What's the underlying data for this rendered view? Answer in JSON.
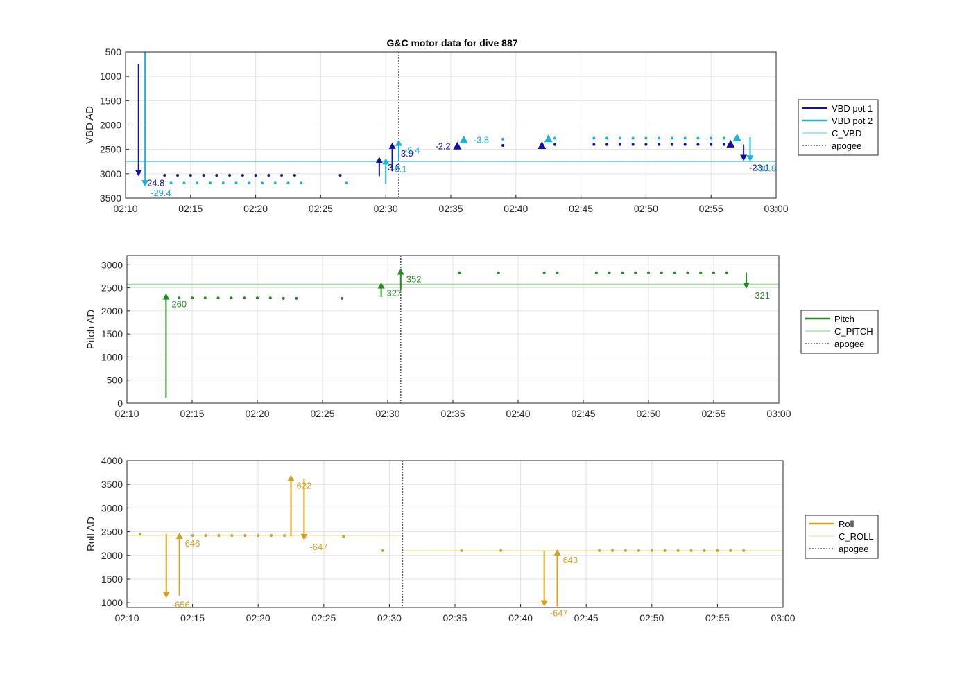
{
  "figure": {
    "title": "G&C motor data for dive 887"
  },
  "chart_data": [
    {
      "type": "line",
      "id": "vbd",
      "ylabel": "VBD AD",
      "xlabel": "",
      "xlim": [
        "02:10",
        "03:00"
      ],
      "ylim": [
        500,
        3500
      ],
      "y_reversed": true,
      "yticks": [
        500,
        1000,
        1500,
        2000,
        2500,
        3000,
        3500
      ],
      "xticks": [
        "02:10",
        "02:15",
        "02:20",
        "02:25",
        "02:30",
        "02:35",
        "02:40",
        "02:45",
        "02:50",
        "02:55",
        "03:00"
      ],
      "grid": true,
      "legend_position": "outside-right",
      "legend": [
        {
          "label": "VBD pot 1",
          "color": "#1010a8",
          "style": "thick"
        },
        {
          "label": "VBD pot 2",
          "color": "#1ab0e0",
          "style": "thick"
        },
        {
          "label": "C_VBD",
          "color": "#3ad6e4",
          "style": "thin"
        },
        {
          "label": "apogee",
          "color": "#555555",
          "style": "dotted"
        }
      ],
      "reference_lines": [
        {
          "name": "C_VBD",
          "y": 2750,
          "color": "#3ad6e4"
        }
      ],
      "apogee": "02:31",
      "series": [
        {
          "name": "VBD pot 1",
          "color": "#1010a8",
          "x": [
            "02:13",
            "02:14",
            "02:15",
            "02:16",
            "02:17",
            "02:18",
            "02:19",
            "02:20",
            "02:21",
            "02:22",
            "02:23",
            "02:26.5",
            "02:39",
            "02:43",
            "02:46",
            "02:47",
            "02:48",
            "02:49",
            "02:50",
            "02:51",
            "02:52",
            "02:53",
            "02:54",
            "02:55",
            "02:56"
          ],
          "y": [
            3030,
            3030,
            3030,
            3030,
            3030,
            3030,
            3030,
            3030,
            3030,
            3030,
            3030,
            3030,
            2420,
            2400,
            2400,
            2400,
            2400,
            2400,
            2400,
            2400,
            2400,
            2400,
            2400,
            2400,
            2400
          ]
        },
        {
          "name": "VBD pot 2",
          "color": "#1ab0e0",
          "x": [
            "02:13.5",
            "02:14.5",
            "02:15.5",
            "02:16.5",
            "02:17.5",
            "02:18.5",
            "02:19.5",
            "02:20.5",
            "02:21.5",
            "02:22.5",
            "02:23.5",
            "02:27",
            "02:39",
            "02:43",
            "02:46",
            "02:47",
            "02:48",
            "02:49",
            "02:50",
            "02:51",
            "02:52",
            "02:53",
            "02:54",
            "02:55",
            "02:56"
          ],
          "y": [
            3190,
            3190,
            3190,
            3190,
            3190,
            3190,
            3190,
            3190,
            3190,
            3190,
            3190,
            3190,
            2290,
            2270,
            2270,
            2270,
            2270,
            2270,
            2270,
            2270,
            2270,
            2270,
            2270,
            2270,
            2270
          ]
        }
      ],
      "events": [
        {
          "x": "02:11",
          "y_from": 750,
          "y_to": 3050,
          "color": "#1010a8",
          "label": "-24.8"
        },
        {
          "x": "02:11.5",
          "y_from": 500,
          "y_to": 3260,
          "color": "#1ab0e0",
          "label": "-29.4"
        },
        {
          "x": "02:29.5",
          "y_from": 3050,
          "y_to": 2650,
          "color": "#1010a8",
          "label": "-3.8"
        },
        {
          "x": "02:30",
          "y_from": 3200,
          "y_to": 2680,
          "color": "#1ab0e0",
          "label": "-6.1"
        },
        {
          "x": "02:30.5",
          "y_from": 2950,
          "y_to": 2360,
          "color": "#1010a8",
          "label": "-3.9"
        },
        {
          "x": "02:31",
          "y_from": 2720,
          "y_to": 2300,
          "color": "#1ab0e0",
          "label": "-5.4"
        },
        {
          "x": "02:57.5",
          "y_from": 2400,
          "y_to": 2740,
          "color": "#1010a8",
          "label": "-23.1"
        },
        {
          "x": "02:58",
          "y_from": 2250,
          "y_to": 2750,
          "color": "#1ab0e0",
          "label": "-30.8"
        }
      ],
      "markers": [
        {
          "x": "02:35.5",
          "y": 2430,
          "color": "#1010a8",
          "label": "-2.2"
        },
        {
          "x": "02:36",
          "y": 2300,
          "color": "#1ab0e0",
          "label": "-3.8"
        },
        {
          "x": "02:42",
          "y": 2420,
          "color": "#1010a8",
          "label": ""
        },
        {
          "x": "02:42.5",
          "y": 2280,
          "color": "#1ab0e0",
          "label": ""
        },
        {
          "x": "02:56.5",
          "y": 2390,
          "color": "#1010a8",
          "label": ""
        },
        {
          "x": "02:57",
          "y": 2260,
          "color": "#1ab0e0",
          "label": ""
        }
      ]
    },
    {
      "type": "line",
      "id": "pitch",
      "ylabel": "Pitch AD",
      "xlabel": "",
      "xlim": [
        "02:10",
        "03:00"
      ],
      "ylim": [
        0,
        3200
      ],
      "y_reversed": false,
      "yticks": [
        0,
        500,
        1000,
        1500,
        2000,
        2500,
        3000
      ],
      "xticks": [
        "02:10",
        "02:15",
        "02:20",
        "02:25",
        "02:30",
        "02:35",
        "02:40",
        "02:45",
        "02:50",
        "02:55",
        "03:00"
      ],
      "grid": true,
      "legend_position": "outside-right",
      "legend": [
        {
          "label": "Pitch",
          "color": "#228b22",
          "style": "thick"
        },
        {
          "label": "C_PITCH",
          "color": "#66dd66",
          "style": "thin"
        },
        {
          "label": "apogee",
          "color": "#555555",
          "style": "dotted"
        }
      ],
      "reference_lines": [
        {
          "name": "C_PITCH",
          "y": 2580,
          "color": "#66dd66"
        }
      ],
      "apogee": "02:31",
      "series": [
        {
          "name": "Pitch",
          "color": "#228b22",
          "x": [
            "02:14",
            "02:15",
            "02:16",
            "02:17",
            "02:18",
            "02:19",
            "02:20",
            "02:21",
            "02:22",
            "02:23",
            "02:26.5",
            "02:35.5",
            "02:38.5",
            "02:42",
            "02:43",
            "02:46",
            "02:47",
            "02:48",
            "02:49",
            "02:50",
            "02:51",
            "02:52",
            "02:53",
            "02:54",
            "02:55",
            "02:56"
          ],
          "y": [
            2280,
            2280,
            2280,
            2280,
            2280,
            2280,
            2280,
            2280,
            2270,
            2270,
            2270,
            2830,
            2830,
            2830,
            2830,
            2830,
            2830,
            2830,
            2830,
            2830,
            2830,
            2830,
            2830,
            2830,
            2830,
            2830
          ]
        }
      ],
      "events": [
        {
          "x": "02:13",
          "y_from": 120,
          "y_to": 2380,
          "color": "#228b22",
          "label": "260"
        },
        {
          "x": "02:29.5",
          "y_from": 2300,
          "y_to": 2620,
          "color": "#228b22",
          "label": "327"
        },
        {
          "x": "02:31",
          "y_from": 2480,
          "y_to": 2920,
          "color": "#228b22",
          "label": "352"
        },
        {
          "x": "02:57.5",
          "y_from": 2830,
          "y_to": 2480,
          "color": "#228b22",
          "label": "-321"
        }
      ],
      "markers": []
    },
    {
      "type": "line",
      "id": "roll",
      "ylabel": "Roll AD",
      "xlabel": "",
      "xlim": [
        "02:10",
        "03:00"
      ],
      "ylim": [
        900,
        4000
      ],
      "y_reversed": false,
      "yticks": [
        1000,
        1500,
        2000,
        2500,
        3000,
        3500,
        4000
      ],
      "xticks": [
        "02:10",
        "02:15",
        "02:20",
        "02:25",
        "02:30",
        "02:35",
        "02:40",
        "02:45",
        "02:50",
        "02:55",
        "03:00"
      ],
      "grid": true,
      "legend_position": "outside-right",
      "legend": [
        {
          "label": "Roll",
          "color": "#d4a020",
          "style": "thick"
        },
        {
          "label": "C_ROLL",
          "color": "#f2e07a",
          "style": "thin"
        },
        {
          "label": "apogee",
          "color": "#555555",
          "style": "dotted"
        }
      ],
      "reference_lines": [
        {
          "name": "C_ROLL",
          "y": 2420,
          "x_from": "02:10",
          "x_to": "02:31",
          "color": "#f2e07a"
        },
        {
          "name": "C_ROLL",
          "y": 2100,
          "x_from": "02:31",
          "x_to": "03:00",
          "color": "#f2e07a"
        }
      ],
      "apogee": "02:31",
      "series": [
        {
          "name": "Roll",
          "color": "#d4a020",
          "x": [
            "02:11",
            "02:15",
            "02:16",
            "02:17",
            "02:18",
            "02:19",
            "02:20",
            "02:21",
            "02:22",
            "02:26.5",
            "02:29.5",
            "02:35.5",
            "02:38.5",
            "02:46",
            "02:47",
            "02:48",
            "02:49",
            "02:50",
            "02:51",
            "02:52",
            "02:53",
            "02:54",
            "02:55",
            "02:56",
            "02:57"
          ],
          "y": [
            2450,
            2420,
            2420,
            2420,
            2420,
            2420,
            2420,
            2420,
            2420,
            2400,
            2100,
            2100,
            2100,
            2100,
            2100,
            2100,
            2100,
            2100,
            2100,
            2100,
            2100,
            2100,
            2100,
            2100,
            2100
          ]
        }
      ],
      "events": [
        {
          "x": "02:13",
          "y_from": 2450,
          "y_to": 1100,
          "color": "#d4a020",
          "label": "-656"
        },
        {
          "x": "02:14",
          "y_from": 1150,
          "y_to": 2480,
          "color": "#d4a020",
          "label": "646"
        },
        {
          "x": "02:22.5",
          "y_from": 2400,
          "y_to": 3700,
          "color": "#d4a020",
          "label": "622"
        },
        {
          "x": "02:23.5",
          "y_from": 3620,
          "y_to": 2320,
          "color": "#d4a020",
          "label": "-647"
        },
        {
          "x": "02:41.8",
          "y_from": 2100,
          "y_to": 920,
          "color": "#d4a020",
          "label": "-647"
        },
        {
          "x": "02:42.8",
          "y_from": 920,
          "y_to": 2130,
          "color": "#d4a020",
          "label": "643"
        }
      ],
      "markers": []
    }
  ]
}
